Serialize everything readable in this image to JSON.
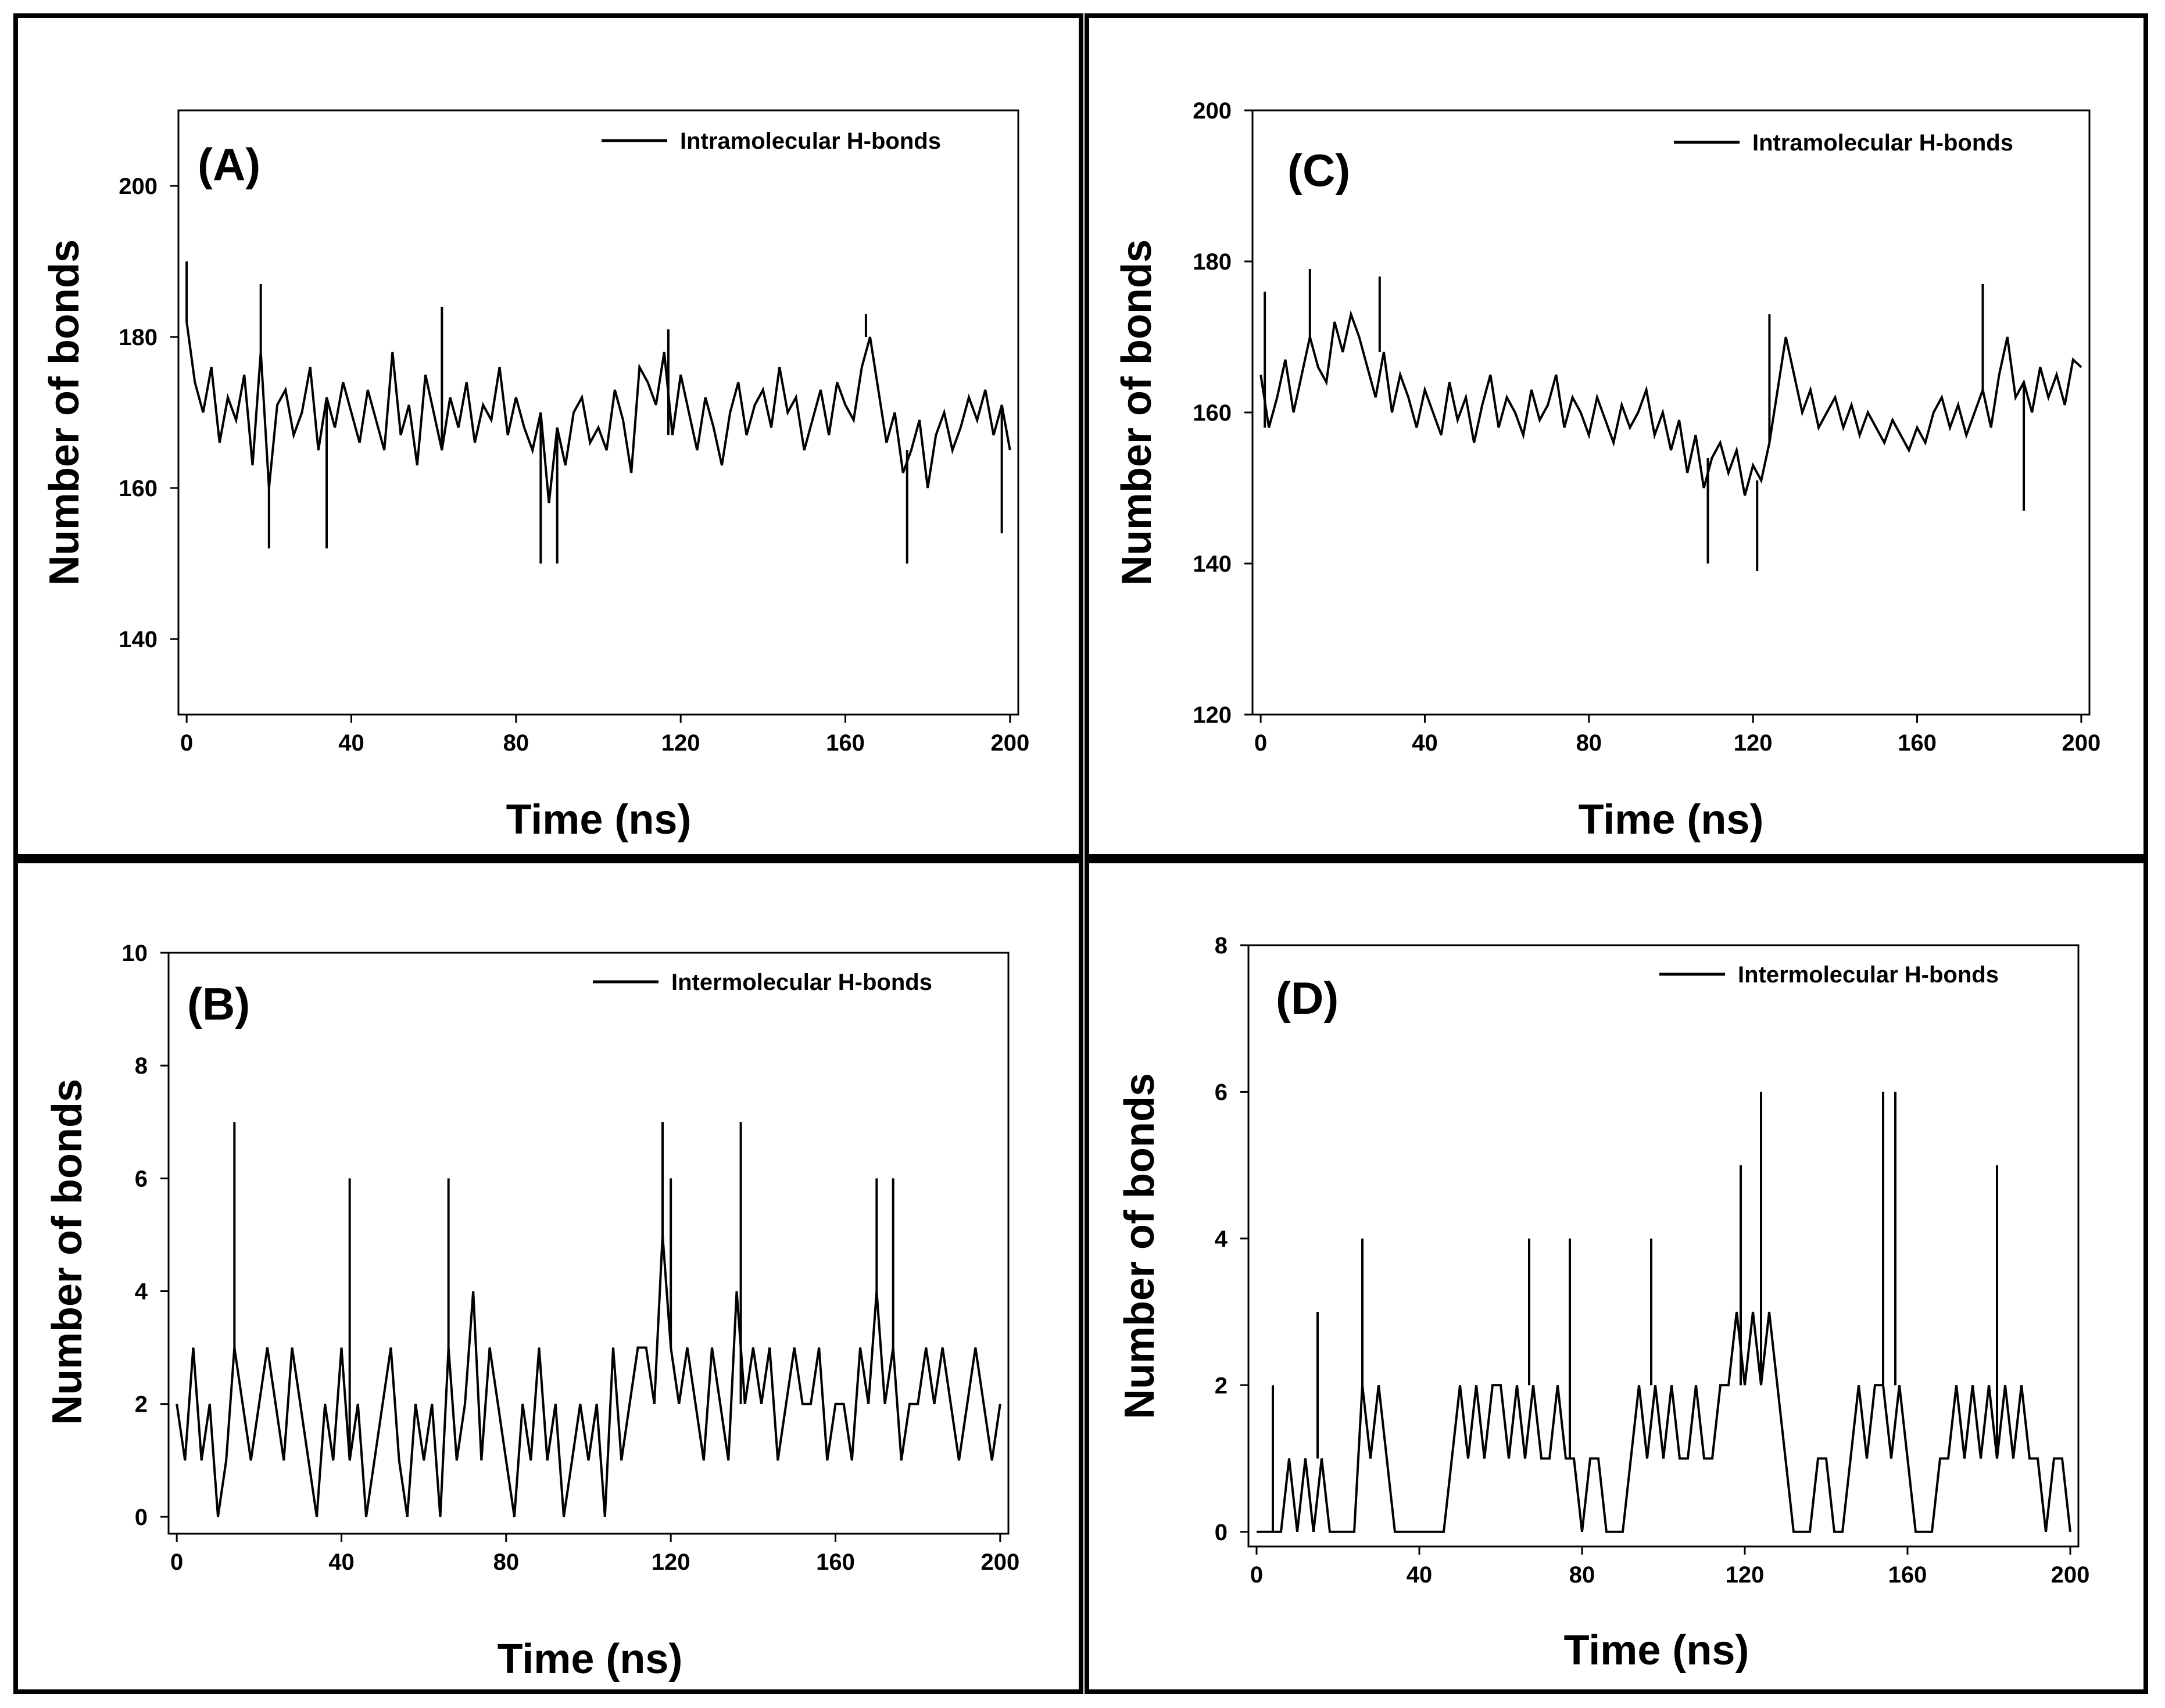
{
  "chart_data": [
    {
      "type": "line",
      "panel_label": "(A)",
      "xlabel": "Time (ns)",
      "ylabel": "Number of bonds",
      "legend": "Intramolecular H-bonds",
      "xlim": [
        -2,
        202
      ],
      "ylim": [
        130,
        210
      ],
      "xticks": [
        0,
        40,
        80,
        120,
        160,
        200
      ],
      "yticks": [
        140,
        160,
        180,
        200
      ],
      "x": [
        0,
        2,
        4,
        6,
        8,
        10,
        12,
        14,
        16,
        18,
        20,
        22,
        24,
        26,
        28,
        30,
        32,
        34,
        36,
        38,
        40,
        42,
        44,
        46,
        48,
        50,
        52,
        54,
        56,
        58,
        60,
        62,
        64,
        66,
        68,
        70,
        72,
        74,
        76,
        78,
        80,
        82,
        84,
        86,
        88,
        90,
        92,
        94,
        96,
        98,
        100,
        102,
        104,
        106,
        108,
        110,
        112,
        114,
        116,
        118,
        120,
        122,
        124,
        126,
        128,
        130,
        132,
        134,
        136,
        138,
        140,
        142,
        144,
        146,
        148,
        150,
        152,
        154,
        156,
        158,
        160,
        162,
        164,
        166,
        168,
        170,
        172,
        174,
        176,
        178,
        180,
        182,
        184,
        186,
        188,
        190,
        192,
        194,
        196,
        198,
        200
      ],
      "values": [
        182,
        174,
        170,
        176,
        166,
        172,
        169,
        175,
        163,
        178,
        160,
        171,
        173,
        167,
        170,
        176,
        165,
        172,
        168,
        174,
        170,
        166,
        173,
        169,
        165,
        178,
        167,
        171,
        163,
        175,
        170,
        165,
        172,
        168,
        174,
        166,
        171,
        169,
        176,
        167,
        172,
        168,
        165,
        170,
        158,
        168,
        163,
        170,
        172,
        166,
        168,
        165,
        173,
        169,
        162,
        176,
        174,
        171,
        178,
        167,
        175,
        170,
        165,
        172,
        168,
        163,
        170,
        174,
        167,
        171,
        173,
        168,
        176,
        170,
        172,
        165,
        169,
        173,
        167,
        174,
        171,
        169,
        176,
        180,
        173,
        166,
        170,
        162,
        165,
        169,
        160,
        167,
        170,
        165,
        168,
        172,
        169,
        173,
        167,
        171,
        165
      ],
      "max_points": [
        [
          0,
          190
        ],
        [
          18,
          187
        ],
        [
          62,
          184
        ],
        [
          117,
          181
        ],
        [
          165,
          183
        ]
      ],
      "min_points": [
        [
          20,
          152
        ],
        [
          34,
          152
        ],
        [
          86,
          150
        ],
        [
          90,
          150
        ],
        [
          175,
          150
        ],
        [
          198,
          154
        ]
      ]
    },
    {
      "type": "line",
      "panel_label": "(B)",
      "xlabel": "Time (ns)",
      "ylabel": "Number of bonds",
      "legend": "Intermolecular H-bonds",
      "xlim": [
        -2,
        202
      ],
      "ylim": [
        -0.3,
        10
      ],
      "xticks": [
        0,
        40,
        80,
        120,
        160,
        200
      ],
      "yticks": [
        0,
        2,
        4,
        6,
        8,
        10
      ],
      "x": [
        0,
        2,
        4,
        6,
        8,
        10,
        12,
        14,
        16,
        18,
        20,
        22,
        24,
        26,
        28,
        30,
        32,
        34,
        36,
        38,
        40,
        42,
        44,
        46,
        48,
        50,
        52,
        54,
        56,
        58,
        60,
        62,
        64,
        66,
        68,
        70,
        72,
        74,
        76,
        78,
        80,
        82,
        84,
        86,
        88,
        90,
        92,
        94,
        96,
        98,
        100,
        102,
        104,
        106,
        108,
        110,
        112,
        114,
        116,
        118,
        120,
        122,
        124,
        126,
        128,
        130,
        132,
        134,
        136,
        138,
        140,
        142,
        144,
        146,
        148,
        150,
        152,
        154,
        156,
        158,
        160,
        162,
        164,
        166,
        168,
        170,
        172,
        174,
        176,
        178,
        180,
        182,
        184,
        186,
        188,
        190,
        192,
        194,
        196,
        198,
        200
      ],
      "values": [
        2,
        1,
        3,
        1,
        2,
        0,
        1,
        3,
        2,
        1,
        2,
        3,
        2,
        1,
        3,
        2,
        1,
        0,
        2,
        1,
        3,
        1,
        2,
        0,
        1,
        2,
        3,
        1,
        0,
        2,
        1,
        2,
        0,
        3,
        1,
        2,
        4,
        1,
        3,
        2,
        1,
        0,
        2,
        1,
        3,
        1,
        2,
        0,
        1,
        2,
        1,
        2,
        0,
        3,
        1,
        2,
        3,
        3,
        2,
        5,
        3,
        2,
        3,
        2,
        1,
        3,
        2,
        1,
        4,
        2,
        3,
        2,
        3,
        1,
        2,
        3,
        2,
        2,
        3,
        1,
        2,
        2,
        1,
        3,
        2,
        4,
        2,
        3,
        1,
        2,
        2,
        3,
        2,
        3,
        2,
        1,
        2,
        3,
        2,
        1,
        2
      ],
      "max_points": [
        [
          14,
          7
        ],
        [
          42,
          6
        ],
        [
          66,
          6
        ],
        [
          118,
          7
        ],
        [
          120,
          6
        ],
        [
          137,
          7
        ],
        [
          170,
          6
        ],
        [
          174,
          6
        ]
      ]
    },
    {
      "type": "line",
      "panel_label": "(C)",
      "xlabel": "Time (ns)",
      "ylabel": "Number of bonds",
      "legend": "Intramolecular H-bonds",
      "xlim": [
        -2,
        202
      ],
      "ylim": [
        120,
        200
      ],
      "xticks": [
        0,
        40,
        80,
        120,
        160,
        200
      ],
      "yticks": [
        120,
        140,
        160,
        180,
        200
      ],
      "x": [
        0,
        2,
        4,
        6,
        8,
        10,
        12,
        14,
        16,
        18,
        20,
        22,
        24,
        26,
        28,
        30,
        32,
        34,
        36,
        38,
        40,
        42,
        44,
        46,
        48,
        50,
        52,
        54,
        56,
        58,
        60,
        62,
        64,
        66,
        68,
        70,
        72,
        74,
        76,
        78,
        80,
        82,
        84,
        86,
        88,
        90,
        92,
        94,
        96,
        98,
        100,
        102,
        104,
        106,
        108,
        110,
        112,
        114,
        116,
        118,
        120,
        122,
        124,
        126,
        128,
        130,
        132,
        134,
        136,
        138,
        140,
        142,
        144,
        146,
        148,
        150,
        152,
        154,
        156,
        158,
        160,
        162,
        164,
        166,
        168,
        170,
        172,
        174,
        176,
        178,
        180,
        182,
        184,
        186,
        188,
        190,
        192,
        194,
        196,
        198,
        200
      ],
      "values": [
        165,
        158,
        162,
        167,
        160,
        165,
        170,
        166,
        164,
        172,
        168,
        173,
        170,
        166,
        162,
        168,
        160,
        165,
        162,
        158,
        163,
        160,
        157,
        164,
        159,
        162,
        156,
        161,
        165,
        158,
        162,
        160,
        157,
        163,
        159,
        161,
        165,
        158,
        162,
        160,
        157,
        162,
        159,
        156,
        161,
        158,
        160,
        163,
        157,
        160,
        155,
        159,
        152,
        157,
        150,
        154,
        156,
        152,
        155,
        149,
        153,
        151,
        156,
        163,
        170,
        165,
        160,
        163,
        158,
        160,
        162,
        158,
        161,
        157,
        160,
        158,
        156,
        159,
        157,
        155,
        158,
        156,
        160,
        162,
        158,
        161,
        157,
        160,
        163,
        158,
        165,
        170,
        162,
        164,
        160,
        166,
        162,
        165,
        161,
        167,
        166
      ],
      "max_points": [
        [
          1,
          176
        ],
        [
          12,
          179
        ],
        [
          29,
          178
        ],
        [
          124,
          173
        ],
        [
          176,
          177
        ]
      ],
      "min_points": [
        [
          109,
          140
        ],
        [
          121,
          139
        ],
        [
          186,
          147
        ]
      ]
    },
    {
      "type": "line",
      "panel_label": "(D)",
      "xlabel": "Time (ns)",
      "ylabel": "Number of bonds",
      "legend": "Intermolecular H-bonds",
      "xlim": [
        -2,
        202
      ],
      "ylim": [
        -0.2,
        8
      ],
      "xticks": [
        0,
        40,
        80,
        120,
        160,
        200
      ],
      "yticks": [
        0,
        2,
        4,
        6,
        8
      ],
      "x": [
        0,
        2,
        4,
        6,
        8,
        10,
        12,
        14,
        16,
        18,
        20,
        22,
        24,
        26,
        28,
        30,
        32,
        34,
        36,
        38,
        40,
        42,
        44,
        46,
        48,
        50,
        52,
        54,
        56,
        58,
        60,
        62,
        64,
        66,
        68,
        70,
        72,
        74,
        76,
        78,
        80,
        82,
        84,
        86,
        88,
        90,
        92,
        94,
        96,
        98,
        100,
        102,
        104,
        106,
        108,
        110,
        112,
        114,
        116,
        118,
        120,
        122,
        124,
        126,
        128,
        130,
        132,
        134,
        136,
        138,
        140,
        142,
        144,
        146,
        148,
        150,
        152,
        154,
        156,
        158,
        160,
        162,
        164,
        166,
        168,
        170,
        172,
        174,
        176,
        178,
        180,
        182,
        184,
        186,
        188,
        190,
        192,
        194,
        196,
        198,
        200
      ],
      "values": [
        0,
        0,
        0,
        0,
        1,
        0,
        1,
        0,
        1,
        0,
        0,
        0,
        0,
        2,
        1,
        2,
        1,
        0,
        0,
        0,
        0,
        0,
        0,
        0,
        1,
        2,
        1,
        2,
        1,
        2,
        2,
        1,
        2,
        1,
        2,
        1,
        1,
        2,
        1,
        1,
        0,
        1,
        1,
        0,
        0,
        0,
        1,
        2,
        1,
        2,
        1,
        2,
        1,
        1,
        2,
        1,
        1,
        2,
        2,
        3,
        2,
        3,
        2,
        3,
        2,
        1,
        0,
        0,
        0,
        1,
        1,
        0,
        0,
        1,
        2,
        1,
        2,
        2,
        1,
        2,
        1,
        0,
        0,
        0,
        1,
        1,
        2,
        1,
        2,
        1,
        2,
        1,
        2,
        1,
        2,
        1,
        1,
        0,
        1,
        1,
        0
      ],
      "max_points": [
        [
          4,
          2
        ],
        [
          15,
          3
        ],
        [
          26,
          4
        ],
        [
          67,
          4
        ],
        [
          77,
          4
        ],
        [
          97,
          4
        ],
        [
          119,
          5
        ],
        [
          124,
          6
        ],
        [
          154,
          6
        ],
        [
          157,
          6
        ],
        [
          182,
          5
        ]
      ]
    }
  ]
}
